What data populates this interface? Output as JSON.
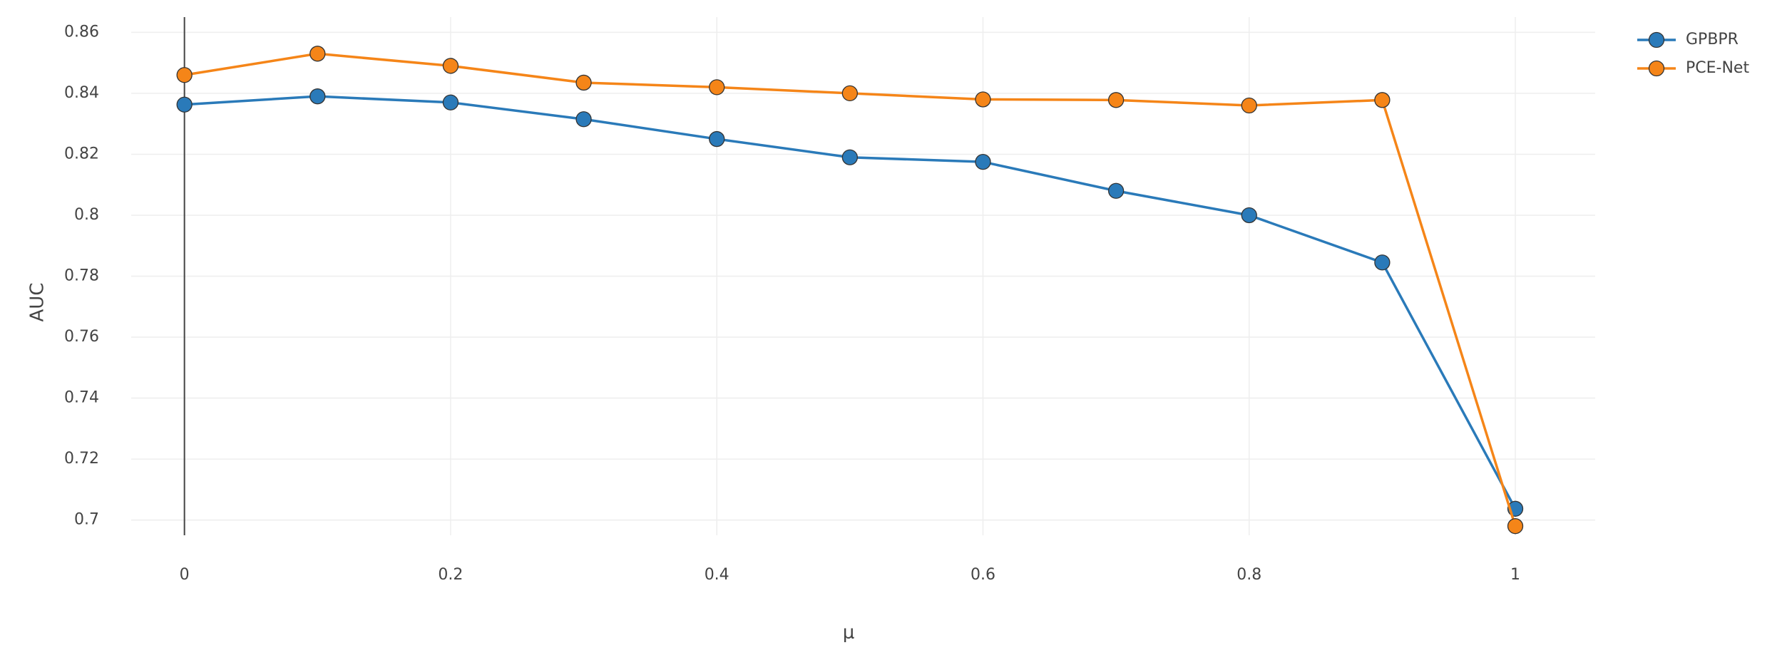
{
  "chart_data": {
    "type": "line",
    "x_label": "μ",
    "y_label": "AUC",
    "x": [
      0,
      0.1,
      0.2,
      0.3,
      0.4,
      0.5,
      0.6,
      0.7,
      0.8,
      0.9,
      1
    ],
    "series": [
      {
        "name": "GPBPR",
        "color": "#2a7ab9",
        "values": [
          0.8363,
          0.839,
          0.837,
          0.8315,
          0.825,
          0.819,
          0.8175,
          0.808,
          0.8,
          0.7845,
          0.7037
        ]
      },
      {
        "name": "PCE-Net",
        "color": "#f58518",
        "values": [
          0.846,
          0.853,
          0.849,
          0.8435,
          0.842,
          0.84,
          0.838,
          0.8378,
          0.836,
          0.8378,
          0.698
        ]
      }
    ],
    "xlim": [
      -0.04,
      1.06
    ],
    "ylim": [
      0.695,
      0.865
    ],
    "xticks": [
      0,
      0.2,
      0.4,
      0.6,
      0.8,
      1
    ],
    "yticks": [
      0.7,
      0.72,
      0.74,
      0.76,
      0.78,
      0.8,
      0.82,
      0.84,
      0.86
    ],
    "grid": true,
    "legend": "top-right"
  }
}
